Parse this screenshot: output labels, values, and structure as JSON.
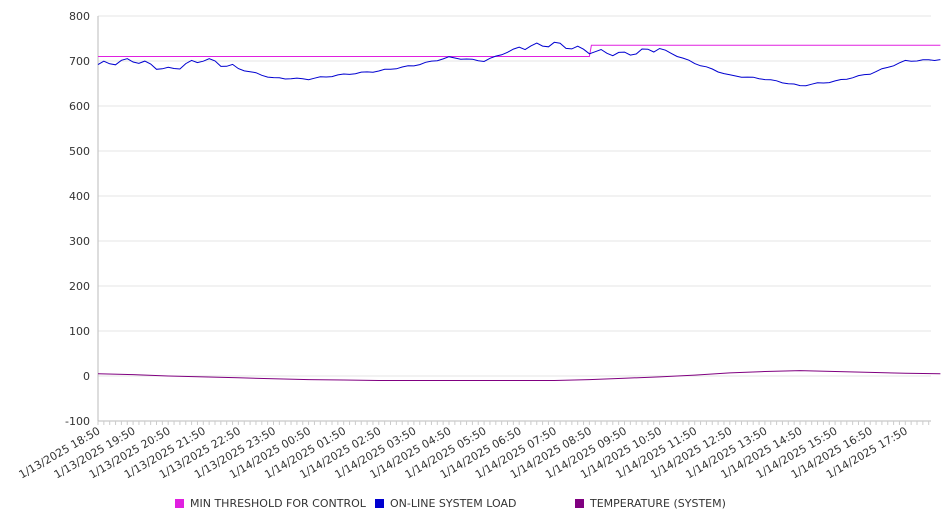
{
  "chart_data": {
    "type": "line",
    "title": "",
    "xlabel": "",
    "ylabel": "",
    "ylim": [
      -100,
      800
    ],
    "yticks": [
      -100,
      0,
      100,
      200,
      300,
      400,
      500,
      600,
      700,
      800
    ],
    "grid": "horizontal",
    "legend_position": "bottom",
    "x_tick_labels": [
      "1/13/2025 18:50",
      "1/13/2025 19:50",
      "1/13/2025 20:50",
      "1/13/2025 21:50",
      "1/13/2025 22:50",
      "1/13/2025 23:50",
      "1/14/2025 00:50",
      "1/14/2025 01:50",
      "1/14/2025 02:50",
      "1/14/2025 03:50",
      "1/14/2025 04:50",
      "1/14/2025 05:50",
      "1/14/2025 06:50",
      "1/14/2025 07:50",
      "1/14/2025 08:50",
      "1/14/2025 09:50",
      "1/14/2025 10:50",
      "1/14/2025 11:50",
      "1/14/2025 12:50",
      "1/14/2025 13:50",
      "1/14/2025 14:50",
      "1/14/2025 15:50",
      "1/14/2025 16:50",
      "1/14/2025 17:50"
    ],
    "x": [
      "1/13/2025 18:50",
      "1/13/2025 19:50",
      "1/13/2025 20:50",
      "1/13/2025 21:50",
      "1/13/2025 22:50",
      "1/13/2025 23:50",
      "1/14/2025 00:50",
      "1/14/2025 01:50",
      "1/14/2025 02:50",
      "1/14/2025 03:50",
      "1/14/2025 04:50",
      "1/14/2025 05:50",
      "1/14/2025 06:50",
      "1/14/2025 07:50",
      "1/14/2025 08:50",
      "1/14/2025 09:50",
      "1/14/2025 10:50",
      "1/14/2025 11:50",
      "1/14/2025 12:50",
      "1/14/2025 13:50",
      "1/14/2025 14:50",
      "1/14/2025 15:50",
      "1/14/2025 16:50",
      "1/14/2025 17:50",
      "1/14/2025 18:40"
    ],
    "series": [
      {
        "name": "MIN THRESHOLD FOR CONTROL",
        "color": "#e020e0",
        "values": [
          710,
          710,
          710,
          710,
          710,
          710,
          710,
          710,
          710,
          710,
          710,
          710,
          710,
          710,
          735,
          735,
          735,
          735,
          735,
          735,
          735,
          735,
          735,
          735,
          735
        ]
      },
      {
        "name": "ON-LINE SYSTEM LOAD",
        "color": "#0000d0",
        "values": [
          692,
          702,
          680,
          704,
          683,
          662,
          660,
          670,
          678,
          690,
          708,
          700,
          730,
          738,
          722,
          715,
          728,
          695,
          668,
          660,
          645,
          655,
          672,
          700,
          703
        ]
      },
      {
        "name": "TEMPERATURE (SYSTEM)",
        "color": "#800080",
        "values": [
          5,
          3,
          0,
          -2,
          -4,
          -6,
          -8,
          -9,
          -10,
          -10,
          -10,
          -10,
          -10,
          -10,
          -8,
          -5,
          -2,
          2,
          7,
          10,
          12,
          10,
          8,
          6,
          5
        ]
      }
    ]
  }
}
